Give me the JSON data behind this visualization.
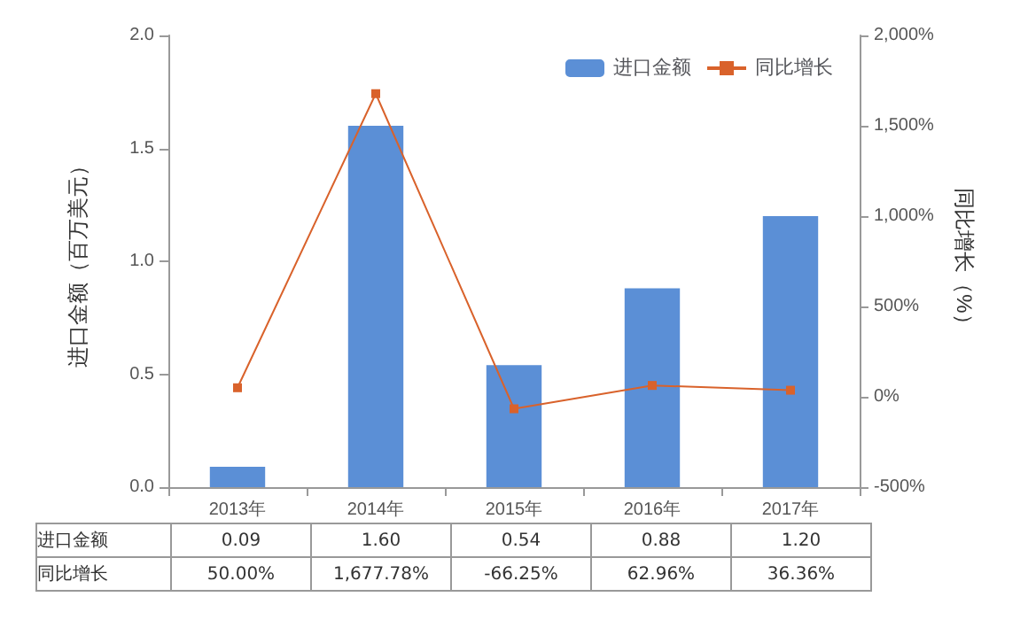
{
  "chart_data": {
    "type": "bar",
    "categories": [
      "2013年",
      "2014年",
      "2015年",
      "2016年",
      "2017年"
    ],
    "series": [
      {
        "name": "进口金额",
        "color": "#5b8fd6",
        "values": [
          0.09,
          1.6,
          0.54,
          0.88,
          1.2
        ],
        "value_labels": [
          "0.09",
          "1.60",
          "0.54",
          "0.88",
          "1.20"
        ]
      },
      {
        "name": "同比增长",
        "type": "line",
        "axis": "y2",
        "color": "#d9622b",
        "values": [
          50.0,
          1677.78,
          -66.25,
          62.96,
          36.36
        ],
        "value_labels": [
          "50.00%",
          "1,677.78%",
          "-66.25%",
          "62.96%",
          "36.36%"
        ]
      }
    ],
    "ylabel": "进口金额（百万美元）",
    "y2label": "同比增长（%）",
    "ylim": [
      0,
      2
    ],
    "yticks": [
      {
        "value": 0,
        "label": "0.0"
      },
      0.5,
      {
        "value": 1,
        "label": "1.0"
      },
      1.5,
      {
        "value": 2,
        "label": "2.0"
      }
    ],
    "y2lim": [
      -500,
      2000
    ],
    "y2ticks": [
      {
        "value": -500,
        "label": "-500%"
      },
      {
        "value": 0,
        "label": "0%"
      },
      {
        "value": 500,
        "label": "500%"
      },
      {
        "value": 1000,
        "label": "1,000%"
      },
      {
        "value": 1500,
        "label": "1,500%"
      },
      {
        "value": 2000,
        "label": "2,000%"
      }
    ],
    "legend": "top right",
    "marker": "square",
    "line_style": "solid",
    "grid": false
  }
}
